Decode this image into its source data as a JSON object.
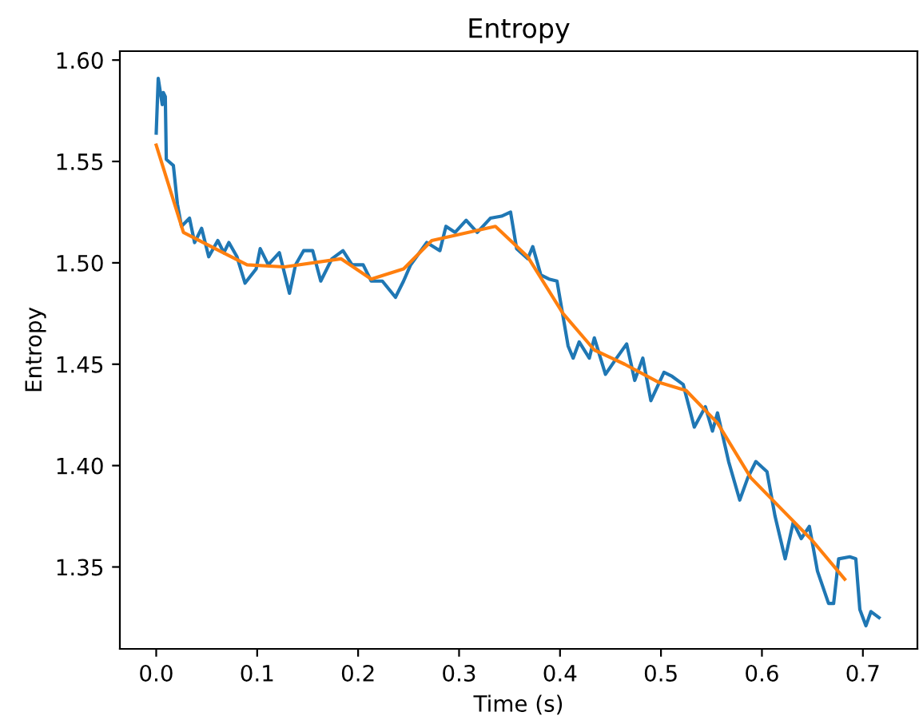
{
  "chart_data": {
    "type": "line",
    "title": "Entropy",
    "xlabel": "Time (s)",
    "ylabel": "Entropy",
    "xlim": [
      -0.036,
      0.754
    ],
    "ylim": [
      1.3096,
      1.6044
    ],
    "xticks": [
      {
        "value": 0,
        "label": "0.0"
      },
      0.1,
      0.2,
      0.3,
      0.4,
      0.5,
      0.6,
      0.7
    ],
    "yticks": [
      1.35,
      {
        "value": 1.4,
        "label": "1.40"
      },
      1.45,
      {
        "value": 1.5,
        "label": "1.50"
      },
      1.55,
      {
        "value": 1.6,
        "label": "1.60"
      }
    ],
    "grid": false,
    "legend": false,
    "marker": "none",
    "line_style": "solid",
    "series": [
      {
        "color": "#1f77b4",
        "x": [
          0,
          0.002,
          0.006,
          0.007,
          0.009,
          0.01,
          0.017,
          0.021,
          0.025,
          0.033,
          0.038,
          0.045,
          0.052,
          0.061,
          0.067,
          0.072,
          0.08,
          0.088,
          0.099,
          0.103,
          0.111,
          0.122,
          0.132,
          0.138,
          0.146,
          0.155,
          0.163,
          0.174,
          0.185,
          0.194,
          0.205,
          0.213,
          0.224,
          0.237,
          0.245,
          0.252,
          0.268,
          0.281,
          0.287,
          0.296,
          0.307,
          0.318,
          0.331,
          0.342,
          0.351,
          0.357,
          0.368,
          0.373,
          0.381,
          0.389,
          0.397,
          0.408,
          0.413,
          0.419,
          0.429,
          0.434,
          0.445,
          0.456,
          0.466,
          0.474,
          0.482,
          0.49,
          0.503,
          0.511,
          0.522,
          0.533,
          0.544,
          0.551,
          0.556,
          0.567,
          0.578,
          0.586,
          0.594,
          0.605,
          0.613,
          0.623,
          0.631,
          0.639,
          0.647,
          0.655,
          0.666,
          0.671,
          0.676,
          0.687,
          0.693,
          0.697,
          0.703,
          0.708,
          0.716
        ],
        "values": [
          1.564,
          1.591,
          1.578,
          1.584,
          1.582,
          1.551,
          1.548,
          1.529,
          1.518,
          1.522,
          1.51,
          1.517,
          1.503,
          1.511,
          1.505,
          1.51,
          1.503,
          1.49,
          1.497,
          1.507,
          1.499,
          1.505,
          1.485,
          1.499,
          1.506,
          1.506,
          1.491,
          1.502,
          1.506,
          1.499,
          1.499,
          1.491,
          1.491,
          1.483,
          1.491,
          1.499,
          1.51,
          1.506,
          1.518,
          1.515,
          1.521,
          1.515,
          1.522,
          1.523,
          1.525,
          1.507,
          1.502,
          1.508,
          1.494,
          1.492,
          1.491,
          1.459,
          1.453,
          1.461,
          1.453,
          1.463,
          1.445,
          1.453,
          1.46,
          1.442,
          1.453,
          1.432,
          1.446,
          1.444,
          1.44,
          1.419,
          1.429,
          1.417,
          1.426,
          1.402,
          1.383,
          1.394,
          1.402,
          1.397,
          1.375,
          1.354,
          1.372,
          1.364,
          1.37,
          1.348,
          1.332,
          1.332,
          1.354,
          1.355,
          1.354,
          1.329,
          1.321,
          1.328,
          1.325
        ]
      },
      {
        "color": "#ff7f0e",
        "x": [
          0,
          0.027,
          0.09,
          0.127,
          0.183,
          0.213,
          0.245,
          0.273,
          0.336,
          0.368,
          0.403,
          0.434,
          0.464,
          0.498,
          0.525,
          0.556,
          0.589,
          0.65,
          0.682
        ],
        "values": [
          1.558,
          1.515,
          1.499,
          1.498,
          1.502,
          1.492,
          1.497,
          1.511,
          1.518,
          1.503,
          1.475,
          1.457,
          1.45,
          1.441,
          1.437,
          1.421,
          1.394,
          1.363,
          1.344
        ]
      }
    ]
  }
}
